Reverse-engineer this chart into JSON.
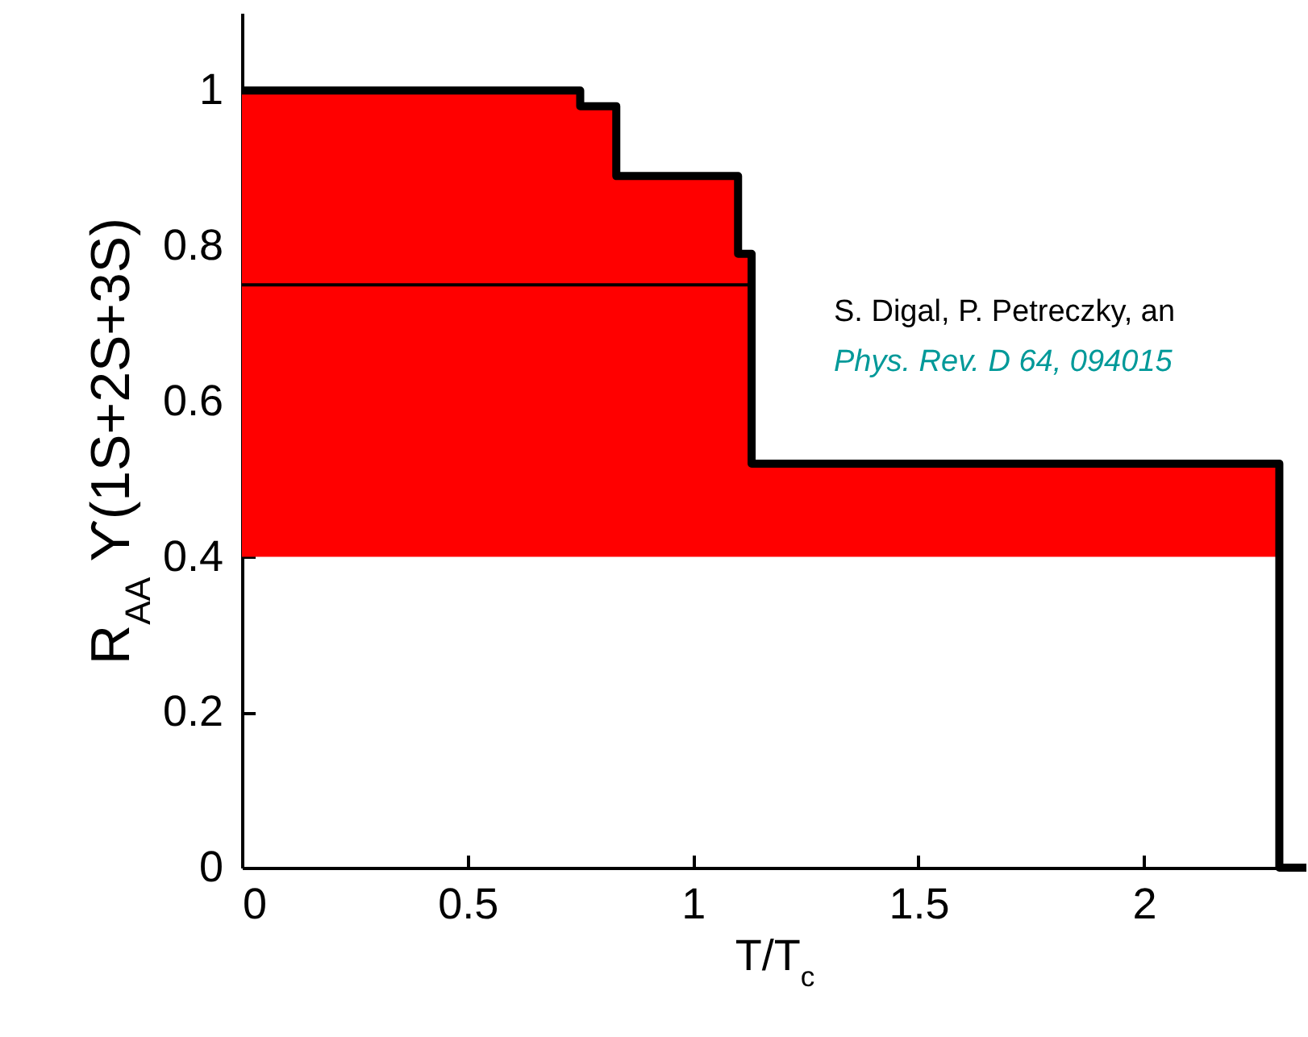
{
  "chart_data": {
    "type": "step",
    "xlabel": "T/T$_{c}$",
    "ylabel": "R$_{AA}$ ϒ(1S+2S+3S)",
    "xlim": [
      0,
      2.36
    ],
    "ylim": [
      0,
      1.1
    ],
    "xticks": [
      0,
      0.5,
      1,
      1.5,
      2
    ],
    "yticks": [
      0,
      0.2,
      0.4,
      0.6,
      0.8,
      1
    ],
    "grid": false,
    "marker": "none",
    "series": [
      {
        "color": "#000000",
        "x": [
          0,
          0.75,
          0.83,
          1.1,
          1.13,
          2.3,
          2.3,
          2.36
        ],
        "values": [
          1,
          0.98,
          0.89,
          0.79,
          0.52,
          0.52,
          0,
          0
        ],
        "lower": [
          0.4,
          0.4,
          0.4,
          0.4,
          0.4,
          0.4,
          null,
          null
        ],
        "upper": [
          1,
          0.98,
          0.89,
          0.79,
          0.52,
          0.52,
          null,
          null
        ]
      },
      {
        "type": "line",
        "color": "#000000",
        "x": [
          0,
          1.13
        ],
        "values": [
          0.75,
          0.75
        ]
      }
    ],
    "annotations": [
      "S. Digal, P. Petreczky, an",
      "Phys. Rev. D 64, 094015"
    ]
  }
}
